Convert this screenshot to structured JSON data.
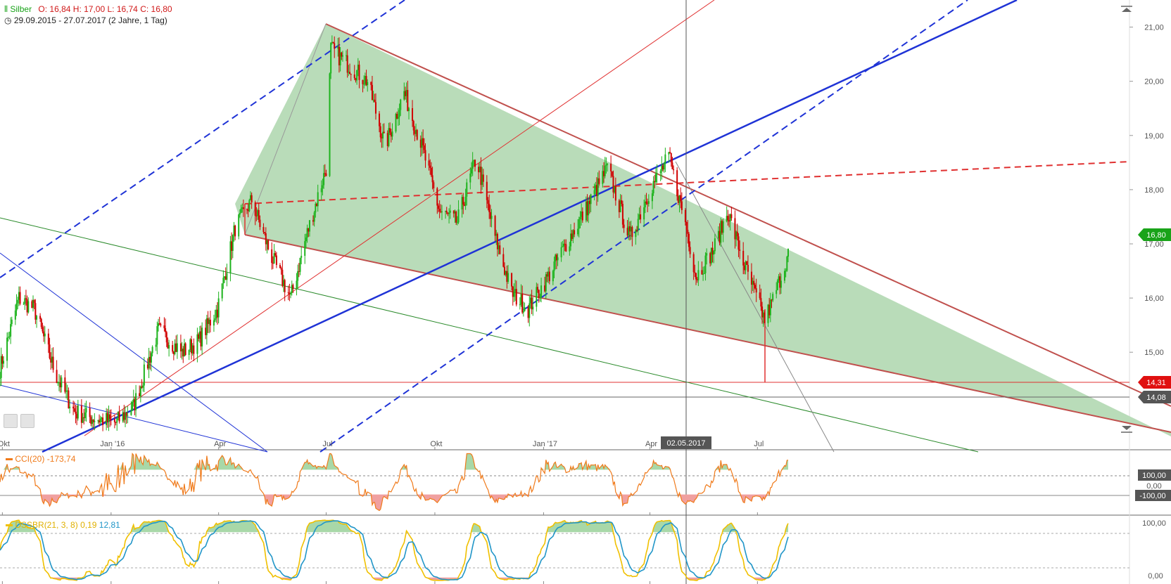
{
  "header": {
    "symbol": "Silber",
    "ohlc": "O: 16,84  H: 17,00  L: 16,74  C: 16,80",
    "range": "29.09.2015 - 27.07.2017   (2 Jahre, 1 Tag)"
  },
  "colors": {
    "up": "#1db31d",
    "down": "#d00000",
    "triangle_fill": "#b9dcb9",
    "triangle_edge": "#c0504d",
    "blue": "#1f33d6",
    "cci": "#f07a1a",
    "dss": "#f0c000",
    "dss_signal": "#2196c8"
  },
  "icons": [
    "chart-type-icon",
    "clock-icon",
    "scroll-up-icon",
    "scroll-down-icon",
    "save-icon",
    "settings-icon"
  ],
  "price_badges": {
    "last": "16,80",
    "support1": "14,31",
    "support2": "14,08"
  },
  "crosshair_date": "02.05.2017",
  "chart_data": [
    {
      "type": "line",
      "title": "Silber",
      "x_tick_labels": [
        "Okt",
        "Jan '16",
        "Apr",
        "Jul",
        "Okt",
        "Jan '17",
        "Apr",
        "Jul"
      ],
      "y_tick_labels": [
        "21,00",
        "20,00",
        "19,00",
        "18,00",
        "17,00",
        "16,00",
        "15,00"
      ],
      "ylim": [
        13.2,
        21.5
      ],
      "price_series": {
        "name": "Silber",
        "x": [
          "2015-09-29",
          "2015-10-15",
          "2015-10-28",
          "2015-11-15",
          "2015-12-01",
          "2015-12-14",
          "2016-01-05",
          "2016-01-20",
          "2016-02-10",
          "2016-03-01",
          "2016-03-15",
          "2016-03-31",
          "2016-04-15",
          "2016-04-29",
          "2016-05-15",
          "2016-06-01",
          "2016-06-15",
          "2016-07-01",
          "2016-07-05",
          "2016-07-20",
          "2016-08-05",
          "2016-08-20",
          "2016-09-05",
          "2016-09-20",
          "2016-10-05",
          "2016-10-20",
          "2016-11-05",
          "2016-11-20",
          "2016-12-05",
          "2016-12-19",
          "2017-01-05",
          "2017-01-20",
          "2017-02-05",
          "2017-02-24",
          "2017-03-15",
          "2017-04-01",
          "2017-04-17",
          "2017-05-02",
          "2017-05-10",
          "2017-05-25",
          "2017-06-06",
          "2017-06-20",
          "2017-07-07",
          "2017-07-13",
          "2017-07-27"
        ],
        "values": [
          14.7,
          16.0,
          15.8,
          14.6,
          13.9,
          13.8,
          13.7,
          14.0,
          15.4,
          15.0,
          15.2,
          15.8,
          17.3,
          17.8,
          16.8,
          16.0,
          17.2,
          18.4,
          20.6,
          20.3,
          20.0,
          18.8,
          19.8,
          18.8,
          17.6,
          17.4,
          18.6,
          17.2,
          16.1,
          15.8,
          16.4,
          17.0,
          17.6,
          18.4,
          17.1,
          18.0,
          18.6,
          17.3,
          16.4,
          16.9,
          17.6,
          16.6,
          15.6,
          15.9,
          16.8
        ]
      }
    },
    {
      "type": "line",
      "title": "CCI(20)",
      "current": "-173,74",
      "y_tick_labels": [
        "100,00",
        "0,00",
        "-100,00"
      ]
    },
    {
      "type": "line",
      "title": "DSSBR(21, 3, 8)",
      "current_1": "0,19",
      "current_2": "12,81",
      "y_tick_labels": [
        "100,00",
        "0,00"
      ]
    }
  ]
}
